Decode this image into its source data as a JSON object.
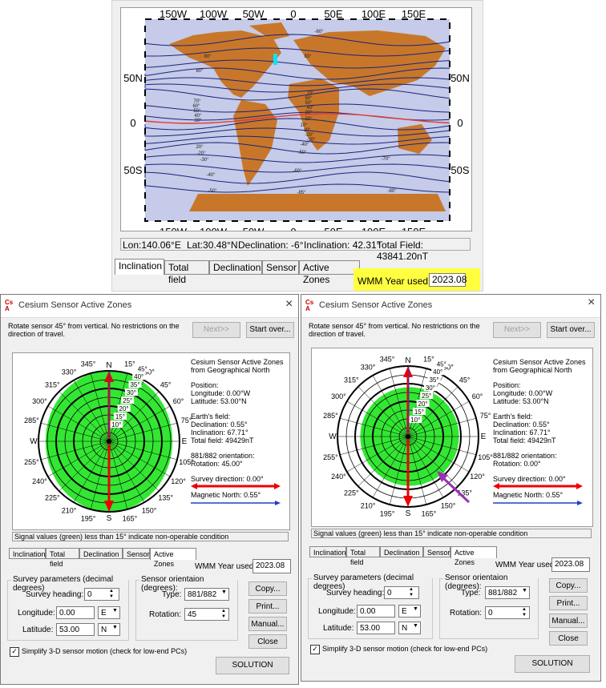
{
  "map": {
    "top_lon_labels": [
      "150W",
      "100W",
      "50W",
      "0",
      "50E",
      "100E",
      "150E"
    ],
    "bottom_lon_labels": [
      "150W",
      "100W",
      "50W",
      "0",
      "50E",
      "100E",
      "150E"
    ],
    "lat_labels": [
      "50N",
      "0",
      "50S"
    ],
    "contour_labels": [
      "80°",
      "80°",
      "70°",
      "60°",
      "50°",
      "40°",
      "30°",
      "20°",
      "-20°",
      "-30°",
      "-40°",
      "-50°",
      "-60°",
      "83°",
      "70°",
      "60°",
      "50°",
      "40°",
      "30°",
      "20°",
      "10°",
      "-10°",
      "-20°",
      "-30°",
      "-40°",
      "-50°",
      "-60°",
      "-70°",
      "-80°",
      "-85°"
    ],
    "colors": {
      "land": "#c8772a",
      "ocean": "#c5cbe8",
      "contour": "#1a237e",
      "equator": "#e53935",
      "marker": "#00e5ff"
    }
  },
  "status": {
    "lon": "Lon:140.06°E",
    "lat": "Lat:30.48°N",
    "declination": "Declination: -6°",
    "inclination": "Inclination: 42.31°",
    "total_field": "Total Field: 43841.20nT"
  },
  "top_tabs": [
    "Inclination",
    "Total field",
    "Declination",
    "Sensor",
    "Active Zones"
  ],
  "wmm": {
    "label": "WMM Year used:",
    "value": "2023.08",
    "highlight": "#ffff40"
  },
  "windows": [
    {
      "title": "Cesium Sensor Active Zones",
      "instruction": "Rotate sensor 45° from vertical. No restrictions on the direction of travel.",
      "next_label": "Next>>",
      "start_over_label": "Start over...",
      "polar": {
        "heading_title": "Cesium Sensor Active Zones",
        "heading_sub": "from Geographical North",
        "position_label": "Position:",
        "longitude_text": "Longitude: 0.00°W",
        "latitude_text": "Latitude:    53.00°N",
        "earth_field_label": "Earth's field:",
        "declination_text": "Declination: 0.55°",
        "inclination_text": "Inclination: 67.71°",
        "total_field_text": "Total field: 49429nT",
        "orientation_label": "881/882 orientation:",
        "rotation_text": "Rotation: 45.00°",
        "survey_direction_text": "Survey direction: 0.00°",
        "magnetic_north_text": "Magnetic North: 0.55°",
        "compass": [
          "N",
          "S",
          "E",
          "W"
        ],
        "bearings": [
          "15°",
          "30°",
          "45°",
          "60°",
          "75°",
          "105°",
          "120°",
          "135°",
          "150°",
          "165°",
          "195°",
          "210°",
          "225°",
          "240°",
          "255°",
          "285°",
          "300°",
          "315°",
          "330°",
          "345°"
        ],
        "ring_labels": [
          "10°",
          "15°",
          "20°",
          "25°",
          "30°",
          "35°",
          "40°",
          "45°"
        ],
        "zone_shape": "ellipse",
        "zone_color": "#33e633"
      },
      "signal_note": "Signal values (green) less than 15° indicate non-operable condition",
      "tabs": [
        "Inclination",
        "Total field",
        "Declination",
        "Sensor",
        "Active Zones"
      ],
      "wmm_label": "WMM Year used:",
      "wmm_value": "2023.08",
      "survey_group": "Survey parameters (decimal degrees)",
      "survey_heading_label": "Survey heading:",
      "survey_heading_value": "0",
      "longitude_label": "Longitude:",
      "longitude_value": "0.00",
      "longitude_dir": "E",
      "latitude_label": "Latitude:",
      "latitude_value": "53.00",
      "latitude_dir": "N",
      "sensor_group": "Sensor orientaion (degrees):",
      "type_label": "Type:",
      "type_value": "881/882",
      "rotation_label": "Rotation:",
      "rotation_value": "45",
      "copy_label": "Copy...",
      "print_label": "Print...",
      "manual_label": "Manual...",
      "close_label": "Close",
      "simplify_label": "Simplify 3-D sensor motion  (check for low-end PCs)",
      "solution_label": "SOLUTION",
      "close_icon": "×"
    },
    {
      "title": "Cesium Sensor Active Zones",
      "instruction": "Rotate sensor 45° from vertical. No restrictions on the direction of travel.",
      "next_label": "Next>>",
      "start_over_label": "Start over...",
      "polar": {
        "heading_title": "Cesium Sensor Active Zones",
        "heading_sub": "from Geographical North",
        "position_label": "Position:",
        "longitude_text": "Longitude: 0.00°W",
        "latitude_text": "Latitude:    53.00°N",
        "earth_field_label": "Earth's field:",
        "declination_text": "Declination: 0.55°",
        "inclination_text": "Inclination: 67.71°",
        "total_field_text": "Total field: 49429nT",
        "orientation_label": "881/882 orientation:",
        "rotation_text": "Rotation: 0.00°",
        "survey_direction_text": "Survey direction: 0.00°",
        "magnetic_north_text": "Magnetic North: 0.55°",
        "compass": [
          "N",
          "S",
          "E",
          "W"
        ],
        "bearings": [
          "15°",
          "30°",
          "45°",
          "60°",
          "75°",
          "105°",
          "120°",
          "135°",
          "150°",
          "165°",
          "195°",
          "210°",
          "225°",
          "240°",
          "255°",
          "285°",
          "300°",
          "315°",
          "330°",
          "345°"
        ],
        "ring_labels": [
          "10°",
          "15°",
          "20°",
          "25°",
          "30°",
          "35°",
          "40°",
          "45°"
        ],
        "zone_shape": "circle",
        "zone_color": "#33e633"
      },
      "signal_note": "Signal values (green) less than 15° indicate non-operable condition",
      "tabs": [
        "Inclination",
        "Total field",
        "Declination",
        "Sensor",
        "Active Zones"
      ],
      "wmm_label": "WMM Year used:",
      "wmm_value": "2023.08",
      "survey_group": "Survey parameters (decimal degrees)",
      "survey_heading_label": "Survey heading:",
      "survey_heading_value": "0",
      "longitude_label": "Longitude:",
      "longitude_value": "0.00",
      "longitude_dir": "E",
      "latitude_label": "Latitude:",
      "latitude_value": "53.00",
      "latitude_dir": "N",
      "sensor_group": "Sensor orientaion (degrees):",
      "type_label": "Type:",
      "type_value": "881/882",
      "rotation_label": "Rotation:",
      "rotation_value": "0",
      "copy_label": "Copy...",
      "print_label": "Print...",
      "manual_label": "Manual...",
      "close_label": "Close",
      "simplify_label": "Simplify 3-D sensor motion  (check for low-end PCs)",
      "solution_label": "SOLUTION",
      "close_icon": "×"
    }
  ]
}
